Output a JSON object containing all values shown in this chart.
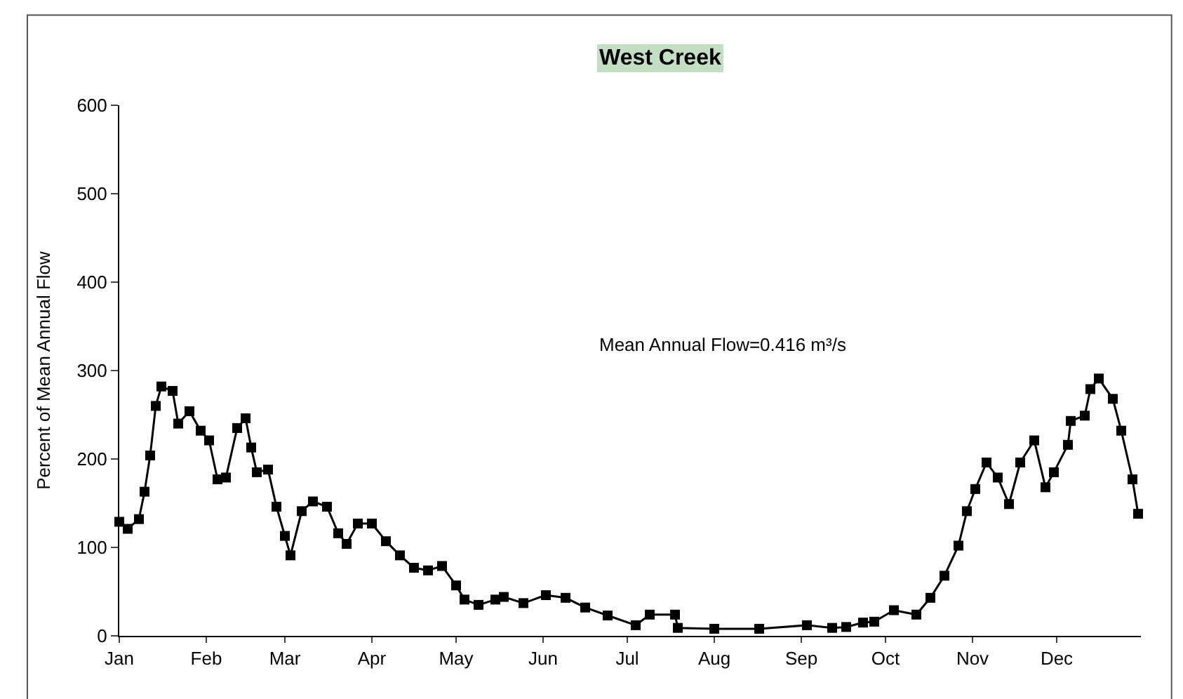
{
  "chart_data": {
    "type": "line",
    "title": "West Creek",
    "ylabel": "Percent of Mean Annual Flow",
    "annotations": [
      "Mean Annual Flow=0.416 m³/s"
    ],
    "xlim": [
      "--01-01",
      "--12-31"
    ],
    "ylim": [
      0,
      600
    ],
    "yticks": [
      0,
      100,
      200,
      300,
      400,
      500,
      600
    ],
    "xticks": [
      {
        "value": "--01-01",
        "label": "Jan"
      },
      {
        "value": "--02-01",
        "label": "Feb"
      },
      {
        "value": "--03-01",
        "label": "Mar"
      },
      {
        "value": "--04-01",
        "label": "Apr"
      },
      {
        "value": "--05-01",
        "label": "May"
      },
      {
        "value": "--06-01",
        "label": "Jun"
      },
      {
        "value": "--07-01",
        "label": "Jul"
      },
      {
        "value": "--08-01",
        "label": "Aug"
      },
      {
        "value": "--09-01",
        "label": "Sep"
      },
      {
        "value": "--10-01",
        "label": "Oct"
      },
      {
        "value": "--11-01",
        "label": "Nov"
      },
      {
        "value": "--12-01",
        "label": "Dec"
      }
    ],
    "marker": "square",
    "line_style": "solid",
    "series": [
      {
        "color": "#000000",
        "x": [
          "--01-01",
          "--01-04",
          "--01-08",
          "--01-10",
          "--01-12",
          "--01-14",
          "--01-16",
          "--01-20",
          "--01-22",
          "--01-26",
          "--01-30",
          "--02-02",
          "--02-05",
          "--02-08",
          "--02-12",
          "--02-15",
          "--02-17",
          "--02-19",
          "--02-23",
          "--02-26",
          "--03-01",
          "--03-03",
          "--03-07",
          "--03-11",
          "--03-16",
          "--03-20",
          "--03-23",
          "--03-27",
          "--04-01",
          "--04-06",
          "--04-11",
          "--04-16",
          "--04-21",
          "--04-26",
          "--05-01",
          "--05-04",
          "--05-09",
          "--05-15",
          "--05-18",
          "--05-25",
          "--06-02",
          "--06-09",
          "--06-16",
          "--06-24",
          "--07-04",
          "--07-09",
          "--07-18",
          "--07-19",
          "--08-01",
          "--08-17",
          "--09-03",
          "--09-12",
          "--09-17",
          "--09-23",
          "--09-27",
          "--10-04",
          "--10-12",
          "--10-17",
          "--10-22",
          "--10-27",
          "--10-30",
          "--11-02",
          "--11-06",
          "--11-10",
          "--11-14",
          "--11-18",
          "--11-23",
          "--11-27",
          "--11-30",
          "--12-05",
          "--12-06",
          "--12-11",
          "--12-13",
          "--12-16",
          "--12-21",
          "--12-24",
          "--12-28",
          "--12-30"
        ],
        "values": [
          129,
          121,
          132,
          163,
          204,
          260,
          282,
          277,
          240,
          254,
          232,
          221,
          177,
          179,
          235,
          246,
          213,
          185,
          188,
          146,
          113,
          91,
          141,
          152,
          146,
          116,
          104,
          127,
          127,
          107,
          91,
          77,
          74,
          79,
          57,
          41,
          35,
          41,
          44,
          37,
          46,
          43,
          32,
          23,
          12,
          24,
          24,
          9,
          8,
          8,
          12,
          9,
          10,
          15,
          16,
          29,
          24,
          43,
          68,
          102,
          141,
          166,
          196,
          179,
          149,
          196,
          221,
          168,
          185,
          216,
          243,
          249,
          279,
          291,
          268,
          232,
          177,
          138
        ]
      }
    ]
  }
}
